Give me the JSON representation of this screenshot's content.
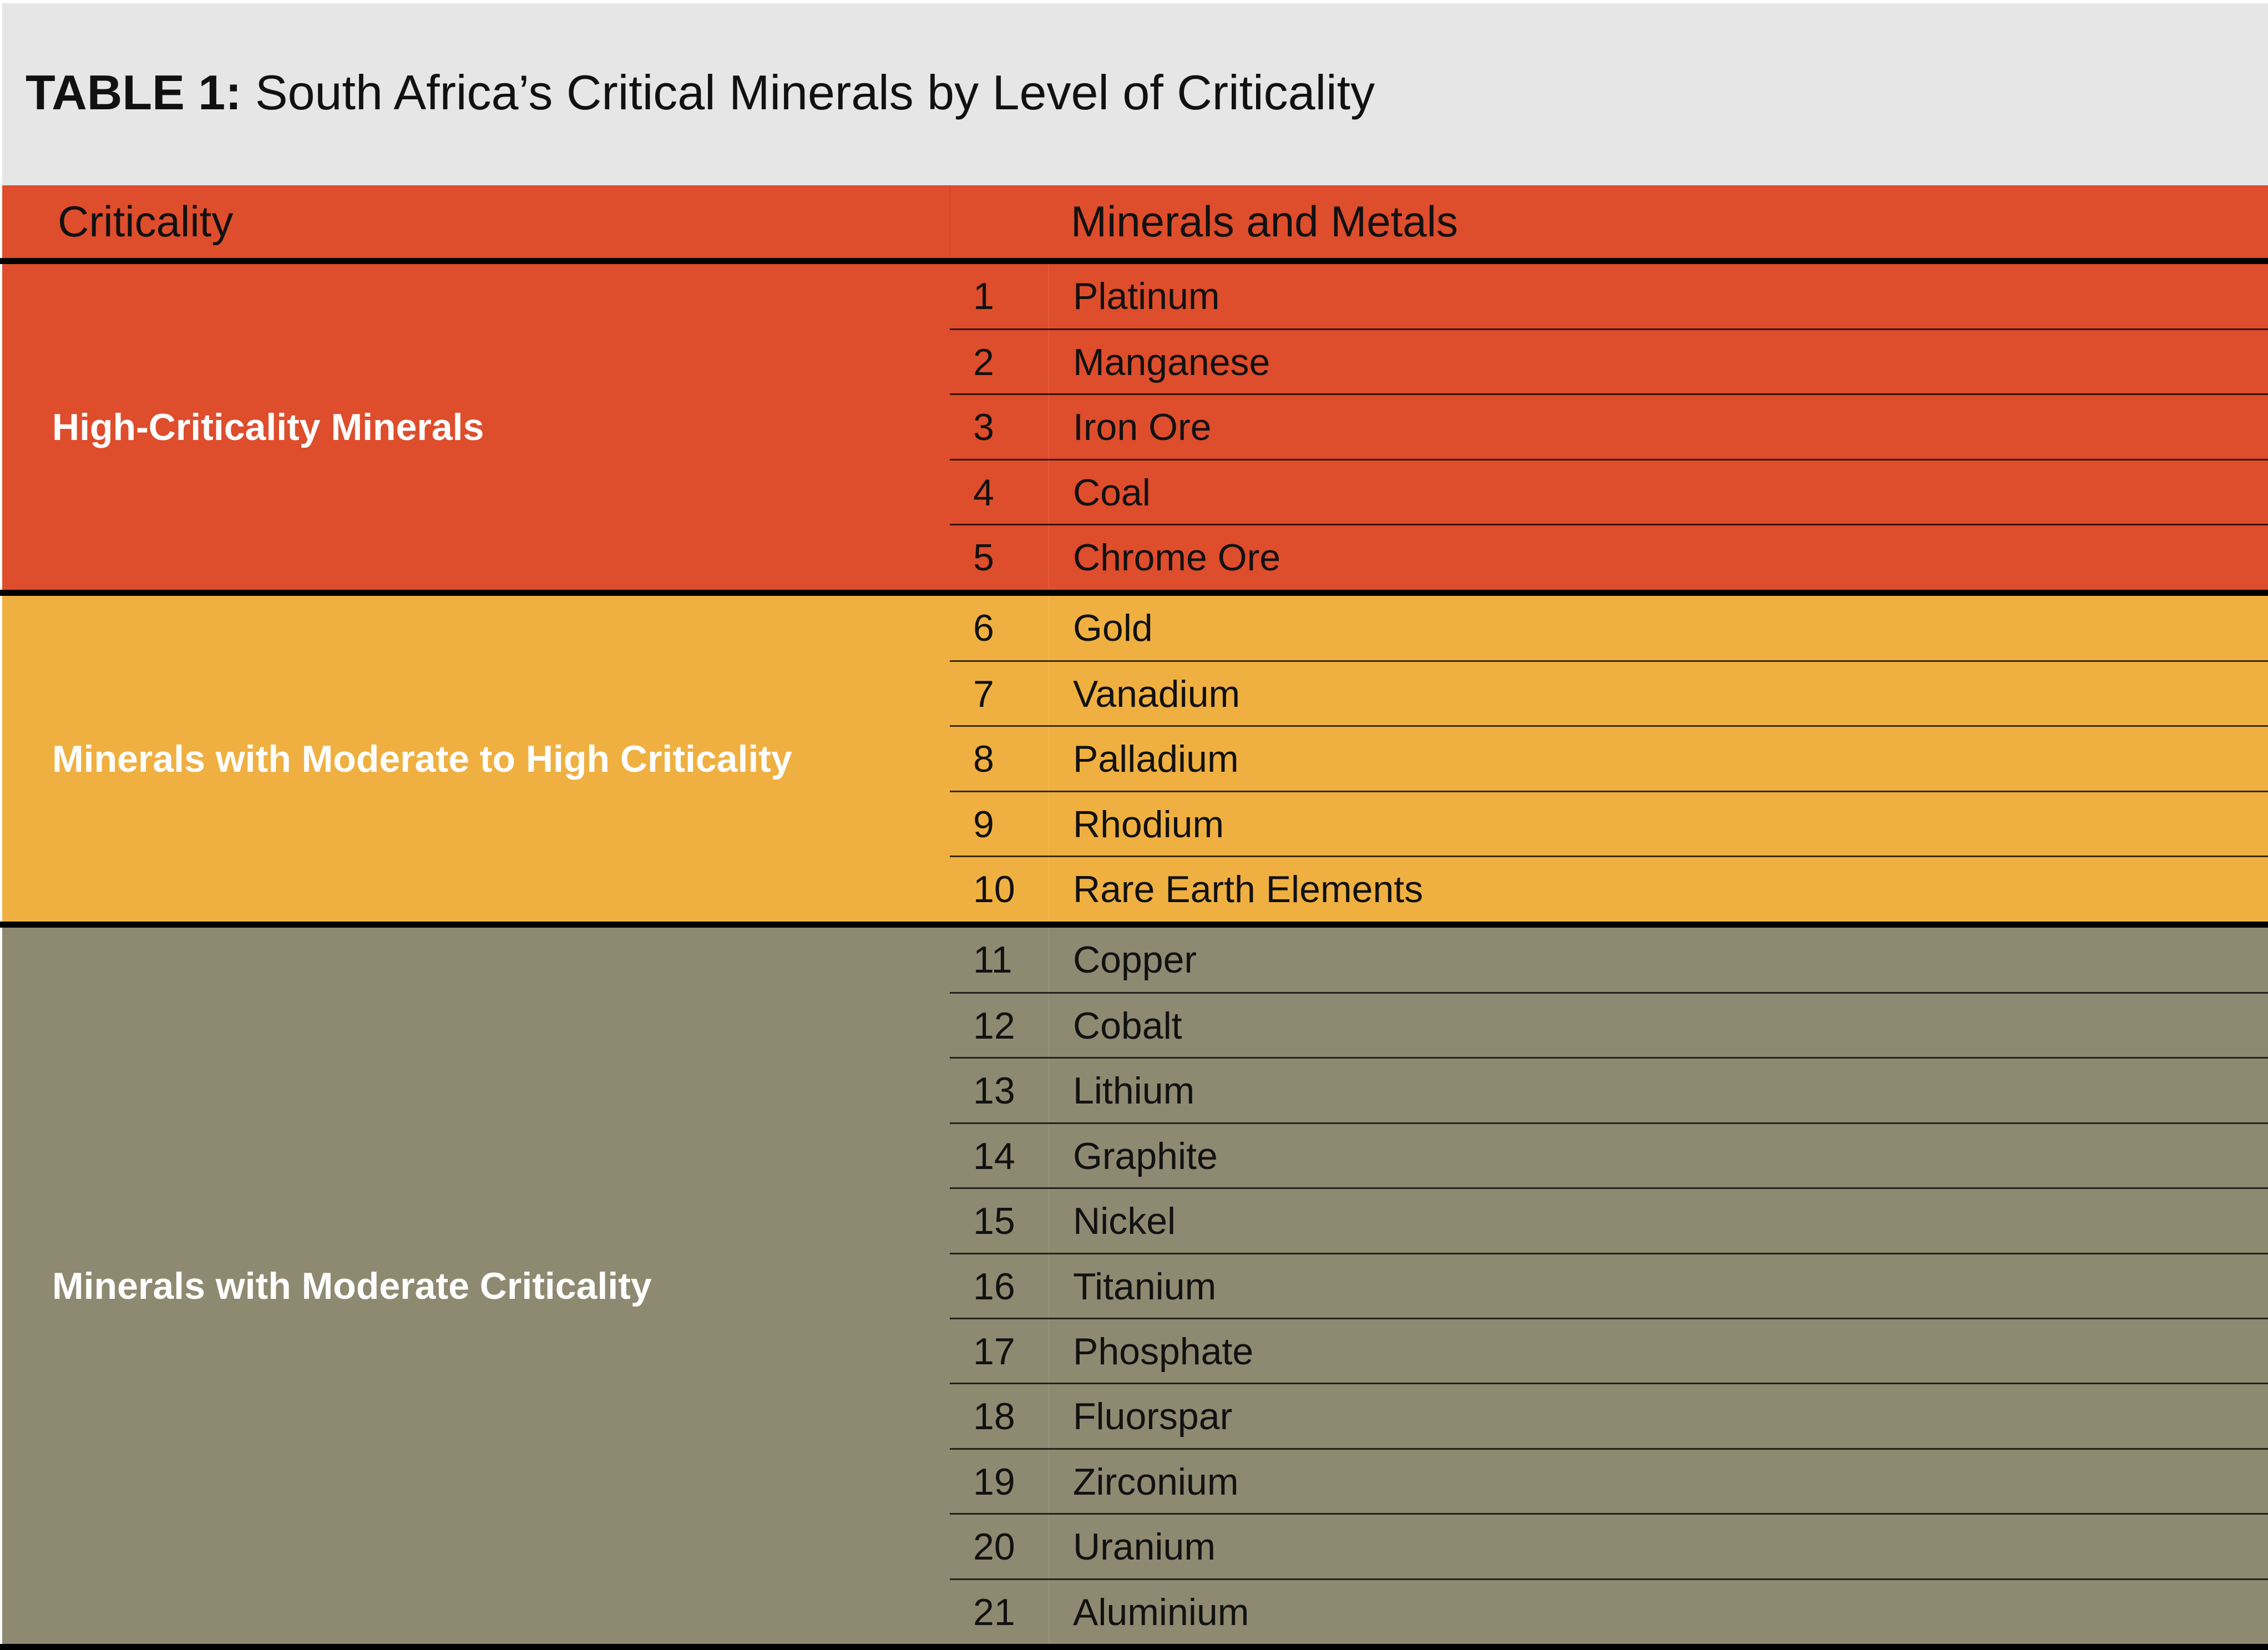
{
  "title": {
    "prefix": "TABLE 1:",
    "text": " South Africa’s Critical Minerals by Level of Criticality"
  },
  "header": {
    "criticality": "Criticality",
    "minerals": "Minerals and Metals"
  },
  "colors": {
    "high": "#de4d2c",
    "moderate_high": "#efb041",
    "moderate": "#8e8971",
    "title_bg": "#e6e6e6"
  },
  "groups": [
    {
      "label": "High-Criticality Minerals",
      "color": "#de4d2c",
      "items": [
        {
          "n": "1",
          "name": "Platinum"
        },
        {
          "n": "2",
          "name": "Manganese"
        },
        {
          "n": "3",
          "name": "Iron Ore"
        },
        {
          "n": "4",
          "name": "Coal"
        },
        {
          "n": "5",
          "name": "Chrome Ore"
        }
      ]
    },
    {
      "label": "Minerals with Moderate to High Criticality",
      "color": "#efb041",
      "items": [
        {
          "n": "6",
          "name": "Gold"
        },
        {
          "n": "7",
          "name": "Vanadium"
        },
        {
          "n": "8",
          "name": "Palladium"
        },
        {
          "n": "9",
          "name": "Rhodium"
        },
        {
          "n": "10",
          "name": "Rare Earth Elements"
        }
      ]
    },
    {
      "label": "Minerals with Moderate Criticality",
      "color": "#8e8971",
      "items": [
        {
          "n": "11",
          "name": "Copper"
        },
        {
          "n": "12",
          "name": "Cobalt"
        },
        {
          "n": "13",
          "name": "Lithium"
        },
        {
          "n": "14",
          "name": "Graphite"
        },
        {
          "n": "15",
          "name": "Nickel"
        },
        {
          "n": "16",
          "name": "Titanium"
        },
        {
          "n": "17",
          "name": "Phosphate"
        },
        {
          "n": "18",
          "name": "Fluorspar"
        },
        {
          "n": "19",
          "name": "Zirconium"
        },
        {
          "n": "20",
          "name": "Uranium"
        },
        {
          "n": "21",
          "name": "Aluminium"
        }
      ]
    }
  ]
}
